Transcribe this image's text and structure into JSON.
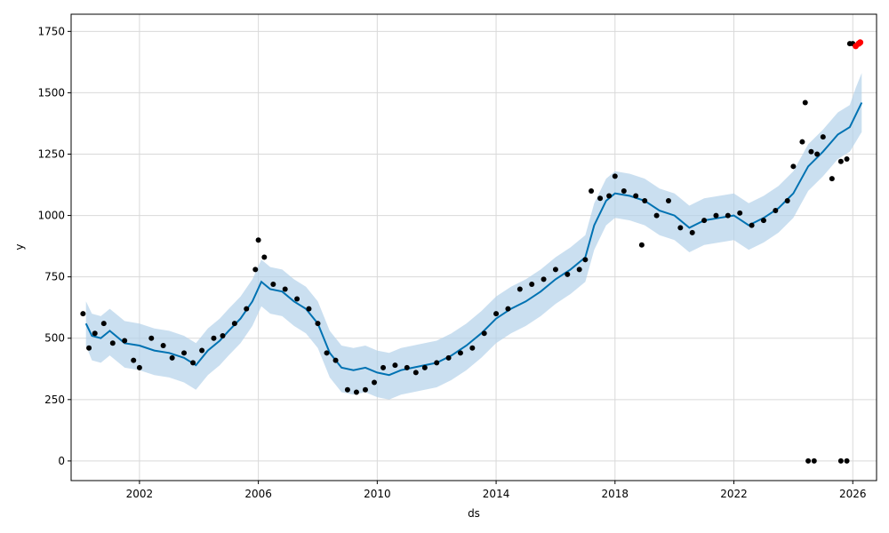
{
  "chart_data": {
    "type": "line",
    "title": "",
    "xlabel": "ds",
    "ylabel": "y",
    "xlim": [
      1999.7,
      2026.8
    ],
    "ylim": [
      -80,
      1820
    ],
    "grid": true,
    "x_ticks": [
      2002,
      2006,
      2010,
      2014,
      2018,
      2022,
      2026
    ],
    "y_ticks": [
      0,
      250,
      500,
      750,
      1000,
      1250,
      1500,
      1750
    ],
    "colors": {
      "forecast_line": "#0072B2",
      "uncertainty_band": "#b3d1ea",
      "observed_points": "#000000",
      "highlight_points": "#ff0000"
    },
    "forecast": {
      "x": [
        2000.2,
        2000.4,
        2000.7,
        2001.0,
        2001.5,
        2002.0,
        2002.5,
        2003.0,
        2003.5,
        2003.9,
        2004.3,
        2004.7,
        2005.0,
        2005.4,
        2005.8,
        2006.1,
        2006.4,
        2006.8,
        2007.2,
        2007.6,
        2008.0,
        2008.4,
        2008.8,
        2009.2,
        2009.6,
        2010.0,
        2010.4,
        2010.8,
        2011.2,
        2011.6,
        2012.0,
        2012.5,
        2013.0,
        2013.5,
        2014.0,
        2014.5,
        2015.0,
        2015.5,
        2016.0,
        2016.5,
        2017.0,
        2017.3,
        2017.7,
        2018.0,
        2018.5,
        2019.0,
        2019.5,
        2020.0,
        2020.5,
        2021.0,
        2021.5,
        2022.0,
        2022.5,
        2023.0,
        2023.5,
        2024.0,
        2024.5,
        2025.0,
        2025.5,
        2025.9,
        2026.1,
        2026.3
      ],
      "y": [
        560,
        510,
        500,
        530,
        480,
        470,
        450,
        440,
        420,
        390,
        450,
        490,
        530,
        580,
        650,
        730,
        700,
        690,
        650,
        620,
        560,
        440,
        380,
        370,
        380,
        360,
        350,
        370,
        380,
        390,
        400,
        430,
        470,
        520,
        580,
        620,
        650,
        690,
        740,
        780,
        830,
        960,
        1060,
        1090,
        1080,
        1060,
        1020,
        1000,
        950,
        980,
        990,
        1000,
        960,
        990,
        1030,
        1090,
        1200,
        1260,
        1330,
        1360,
        1410,
        1460
      ],
      "lower": [
        470,
        410,
        400,
        430,
        380,
        370,
        350,
        340,
        320,
        290,
        350,
        390,
        430,
        480,
        550,
        630,
        600,
        590,
        550,
        520,
        460,
        340,
        280,
        270,
        280,
        260,
        250,
        270,
        280,
        290,
        300,
        330,
        370,
        420,
        480,
        520,
        550,
        590,
        640,
        680,
        730,
        860,
        960,
        990,
        980,
        960,
        920,
        900,
        850,
        880,
        890,
        900,
        860,
        890,
        930,
        990,
        1100,
        1160,
        1230,
        1260,
        1300,
        1340
      ],
      "upper": [
        650,
        600,
        590,
        620,
        570,
        560,
        540,
        530,
        510,
        480,
        540,
        580,
        620,
        670,
        740,
        820,
        790,
        780,
        740,
        710,
        650,
        530,
        470,
        460,
        470,
        450,
        440,
        460,
        470,
        480,
        490,
        520,
        560,
        610,
        670,
        710,
        740,
        780,
        830,
        870,
        920,
        1050,
        1150,
        1180,
        1170,
        1150,
        1110,
        1090,
        1040,
        1070,
        1080,
        1090,
        1050,
        1080,
        1120,
        1180,
        1290,
        1350,
        1420,
        1450,
        1520,
        1580
      ]
    },
    "observed": {
      "x": [
        2000.1,
        2000.3,
        2000.5,
        2000.8,
        2001.1,
        2001.5,
        2001.8,
        2002.0,
        2002.4,
        2002.8,
        2003.1,
        2003.5,
        2003.8,
        2004.1,
        2004.5,
        2004.8,
        2005.2,
        2005.6,
        2005.9,
        2006.0,
        2006.2,
        2006.5,
        2006.9,
        2007.3,
        2007.7,
        2008.0,
        2008.3,
        2008.6,
        2009.0,
        2009.3,
        2009.6,
        2009.9,
        2010.2,
        2010.6,
        2011.0,
        2011.3,
        2011.6,
        2012.0,
        2012.4,
        2012.8,
        2013.2,
        2013.6,
        2014.0,
        2014.4,
        2014.8,
        2015.2,
        2015.6,
        2016.0,
        2016.4,
        2016.8,
        2017.0,
        2017.2,
        2017.5,
        2017.8,
        2018.0,
        2018.3,
        2018.7,
        2019.0,
        2019.4,
        2019.8,
        2020.2,
        2020.6,
        2021.0,
        2021.4,
        2021.8,
        2022.2,
        2022.6,
        2023.0,
        2023.4,
        2023.8,
        2024.0,
        2024.3,
        2024.4,
        2024.6,
        2024.8,
        2025.0,
        2025.3,
        2025.6,
        2025.8,
        2025.9,
        2026.0,
        2024.5,
        2024.7,
        2025.6,
        2025.8,
        2018.9
      ],
      "y": [
        600,
        460,
        520,
        560,
        480,
        490,
        410,
        380,
        500,
        470,
        420,
        440,
        400,
        450,
        500,
        510,
        560,
        620,
        780,
        900,
        830,
        720,
        700,
        660,
        620,
        560,
        440,
        410,
        290,
        280,
        290,
        320,
        380,
        390,
        380,
        360,
        380,
        400,
        420,
        440,
        460,
        520,
        600,
        620,
        700,
        720,
        740,
        780,
        760,
        780,
        820,
        1100,
        1070,
        1080,
        1160,
        1100,
        1080,
        1060,
        1000,
        1060,
        950,
        930,
        980,
        1000,
        1000,
        1010,
        960,
        980,
        1020,
        1060,
        1200,
        1300,
        1460,
        1260,
        1250,
        1320,
        1150,
        1220,
        1230,
        1700,
        1700,
        0,
        0,
        0,
        0,
        880
      ]
    },
    "highlight": {
      "x": [
        2026.1,
        2026.2,
        2026.25
      ],
      "y": [
        1690,
        1700,
        1705
      ]
    }
  }
}
